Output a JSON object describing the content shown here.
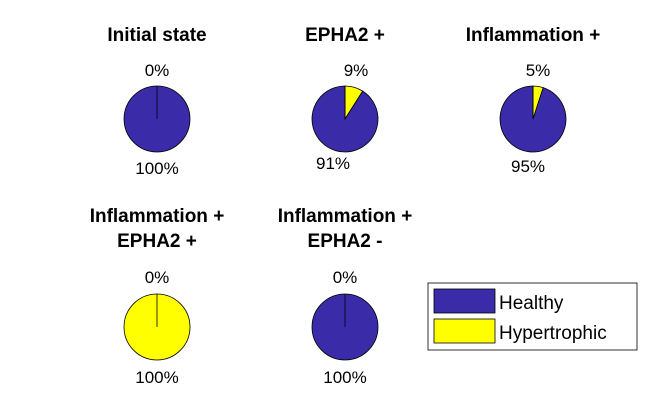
{
  "chart_data": [
    {
      "type": "pie",
      "title": "Initial state",
      "categories": [
        "Healthy",
        "Hypertrophic"
      ],
      "values": [
        100,
        0
      ],
      "labels": [
        "100%",
        "0%"
      ]
    },
    {
      "type": "pie",
      "title": "EPHA2 +",
      "categories": [
        "Healthy",
        "Hypertrophic"
      ],
      "values": [
        91,
        9
      ],
      "labels": [
        "91%",
        "9%"
      ]
    },
    {
      "type": "pie",
      "title": "Inflammation +",
      "categories": [
        "Healthy",
        "Hypertrophic"
      ],
      "values": [
        95,
        5
      ],
      "labels": [
        "95%",
        "5%"
      ]
    },
    {
      "type": "pie",
      "title": "Inflammation +\nEPHA2 +",
      "title_lines": [
        "Inflammation +",
        "EPHA2 +"
      ],
      "categories": [
        "Healthy",
        "Hypertrophic"
      ],
      "values": [
        0,
        100
      ],
      "labels": [
        "0%",
        "100%"
      ]
    },
    {
      "type": "pie",
      "title": "Inflammation +\nEPHA2 -",
      "title_lines": [
        "Inflammation +",
        "EPHA2 -"
      ],
      "categories": [
        "Healthy",
        "Hypertrophic"
      ],
      "values": [
        100,
        0
      ],
      "labels": [
        "100%",
        "0%"
      ]
    }
  ],
  "legend": {
    "placement": "bottom-right",
    "items": [
      {
        "label": "Healthy",
        "color": "#3A2BA8"
      },
      {
        "label": "Hypertrophic",
        "color": "#FFFF00"
      }
    ]
  },
  "colors": {
    "healthy": "#3A2BA8",
    "hypertrophic": "#FFFF00"
  }
}
